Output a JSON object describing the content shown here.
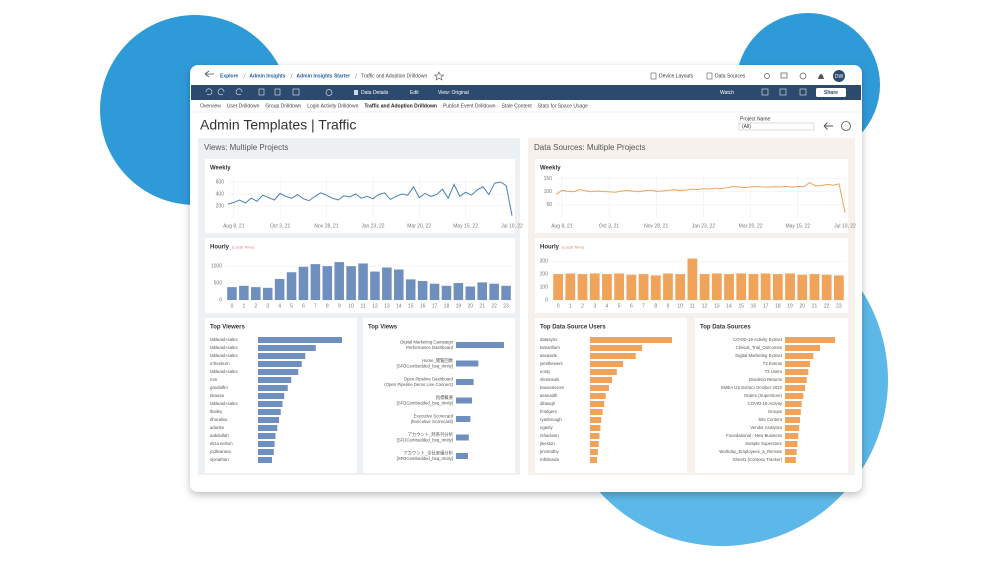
{
  "breadcrumb": [
    "Explore",
    "Admin Insights",
    "Admin Insights Starter",
    "Traffic and Adoption Drilldown"
  ],
  "top_actions": [
    "Device Layouts",
    "Data Sources"
  ],
  "avatar": "DW",
  "toolbar": {
    "data_details": "Data Details",
    "edit": "Edit",
    "view": "View: Original",
    "watch": "Watch",
    "share": "Share"
  },
  "tabs": [
    "Overview",
    "User Drilldown",
    "Group Drilldown",
    "Login Activity Drilldown",
    "Traffic and Adoption Drilldown",
    "Publish Event Drilldown",
    "Stale Content",
    "Stats for Space Usage"
  ],
  "title": "Admin Templates | Traffic",
  "filter": {
    "label": "Project Name",
    "value": "(All)"
  },
  "sections": [
    "Views: Multiple Projects",
    "Data Sources: Multiple Projects"
  ],
  "chart_data": [
    {
      "type": "line",
      "title": "Weekly",
      "color": "#4a7fb5",
      "categories": [
        null,
        "Aug 8, 21",
        null,
        null,
        null,
        null,
        null,
        null,
        null,
        "Oct 3, 21",
        null,
        null,
        null,
        null,
        null,
        null,
        null,
        "Nov 28, 21",
        null,
        null,
        null,
        null,
        null,
        null,
        null,
        "Jan 23, 22",
        null,
        null,
        null,
        null,
        null,
        null,
        null,
        "Mar 20, 22",
        null,
        null,
        null,
        null,
        null,
        null,
        null,
        "May 15, 22",
        null,
        null,
        null,
        null,
        null,
        null,
        null,
        "Jul 10, 22"
      ],
      "values": [
        230,
        260,
        300,
        250,
        330,
        280,
        380,
        340,
        300,
        410,
        360,
        330,
        390,
        320,
        290,
        360,
        420,
        380,
        330,
        300,
        370,
        350,
        400,
        330,
        360,
        320,
        390,
        420,
        310,
        360,
        400,
        380,
        520,
        340,
        410,
        360,
        390,
        480,
        330,
        560,
        360,
        430,
        380,
        470,
        520,
        390,
        580,
        600,
        540,
        40
      ],
      "ylim": [
        0,
        700
      ],
      "yticks": [
        200,
        400,
        600
      ]
    },
    {
      "type": "bar",
      "title": "Hourly",
      "subtitle": "(Local Time)",
      "color": "#6f8fbe",
      "categories": [
        0,
        1,
        2,
        3,
        4,
        5,
        6,
        7,
        8,
        9,
        10,
        11,
        12,
        13,
        14,
        15,
        16,
        17,
        18,
        19,
        20,
        21,
        22,
        23
      ],
      "values": [
        380,
        420,
        380,
        360,
        620,
        820,
        980,
        1060,
        1000,
        1120,
        1000,
        1080,
        840,
        960,
        900,
        610,
        560,
        480,
        420,
        500,
        400,
        520,
        480,
        420
      ],
      "ylim": [
        0,
        1300
      ],
      "yticks": [
        0,
        500,
        1000
      ]
    },
    {
      "type": "line",
      "title": "Weekly",
      "color": "#f0a35a",
      "categories": [
        null,
        "Aug 8, 21",
        null,
        null,
        null,
        null,
        null,
        null,
        null,
        "Oct 3, 21",
        null,
        null,
        null,
        null,
        null,
        null,
        null,
        "Nov 28, 21",
        null,
        null,
        null,
        null,
        null,
        null,
        null,
        "Jan 23, 22",
        null,
        null,
        null,
        null,
        null,
        null,
        null,
        "Mar 20, 22",
        null,
        null,
        null,
        null,
        null,
        null,
        null,
        "May 15, 22",
        null,
        null,
        null,
        null,
        null,
        null,
        null,
        "Jul 10, 22"
      ],
      "values": [
        90,
        105,
        102,
        100,
        108,
        104,
        100,
        103,
        101,
        100,
        98,
        102,
        105,
        103,
        100,
        104,
        106,
        102,
        103,
        105,
        108,
        104,
        106,
        110,
        108,
        112,
        110,
        114,
        112,
        115,
        120,
        118,
        116,
        118,
        120,
        118,
        117,
        119,
        118,
        121,
        117,
        120,
        119,
        135,
        122,
        124,
        128,
        125,
        130,
        20
      ],
      "ylim": [
        0,
        160
      ],
      "yticks": [
        50,
        100,
        150
      ]
    },
    {
      "type": "bar",
      "title": "Hourly",
      "subtitle": "(Local Time)",
      "color": "#f0a35a",
      "categories": [
        0,
        1,
        2,
        3,
        4,
        5,
        6,
        7,
        8,
        9,
        10,
        11,
        12,
        13,
        14,
        15,
        16,
        17,
        18,
        19,
        20,
        21,
        22,
        23
      ],
      "values": [
        200,
        205,
        200,
        205,
        200,
        205,
        195,
        200,
        190,
        205,
        200,
        320,
        200,
        205,
        200,
        205,
        200,
        205,
        200,
        205,
        195,
        200,
        195,
        190
      ],
      "ylim": [
        0,
        340
      ],
      "yticks": [
        0,
        100,
        200,
        300
      ]
    },
    {
      "type": "hbar",
      "title": "Top Viewers",
      "color": "#6f8fbe",
      "categories": [
        "tableaid+sales",
        "tableaid+sales",
        "tableaid+sales",
        "mfreeburn",
        "tableaid+sales",
        "mm",
        "gandalfm",
        "nkausa",
        "tableaid+sales",
        "lbailey",
        "dhoralisu",
        "adunke",
        "aabdullah",
        "eliza.nelson",
        "jcollearana",
        "vjonathan"
      ],
      "values": [
        480,
        330,
        270,
        250,
        230,
        190,
        170,
        150,
        140,
        130,
        120,
        110,
        100,
        95,
        90,
        80
      ]
    },
    {
      "type": "hbar",
      "title": "Top Views",
      "color": "#6f8fbe",
      "categories": [
        [
          "Digital Marketing Campaign",
          "Performance Dashboard"
        ],
        [
          "Home_閲覧回数",
          "[SFDCembedded_bsq_trinity]"
        ],
        [
          "Open Pipeline Dashboard",
          "(Open Pipeline Demo Live Connect)"
        ],
        [
          "指標概要",
          "[SFDCembedded_bsq_trinity]"
        ],
        [
          "Executive Scorecard",
          "(Executive Scorecard)"
        ],
        [
          "アカウント_時系列分析",
          "[SFDCembedded_bsq_trinity]"
        ],
        [
          "アカウント_全社実績分析",
          "[SFDCembedded_bsq_trinity]"
        ]
      ],
      "values": [
        300,
        140,
        110,
        100,
        90,
        80,
        75
      ]
    },
    {
      "type": "hbar",
      "title": "Top Data Source Users",
      "color": "#f0a35a",
      "categories": [
        "datasytcr",
        "tamarillum",
        "aseaside",
        "jsmithewers",
        "eosty",
        "sfeninsuls",
        "bassxxlerom",
        "aeseaidh",
        "dibasqh",
        "fmtdgers",
        "ryanbrough",
        "ngasty",
        "nthadown",
        "jleeston",
        "jmomathy",
        "mlbrlanda"
      ],
      "values": [
        520,
        330,
        290,
        210,
        170,
        140,
        120,
        100,
        90,
        80,
        72,
        66,
        60,
        55,
        50,
        45
      ]
    },
    {
      "type": "hbar",
      "title": "Top Data Sources",
      "color": "#f0a35a",
      "categories": [
        "COVID-19 Activity Extract",
        "Clinical_Trial_Outcomes",
        "Digital Marketing Extract",
        "T3 Events",
        "T3 Users",
        "Dividend Returns",
        "EMEA US Extract October 2022",
        "Orders (Superstore)",
        "COVID-19 Activity",
        "Groups",
        "Site Content",
        "Vendor Analytics",
        "Foundational - New Business",
        "Sample Superstore",
        "Workday_Employees_a_Remote",
        "Sheet1 (Contoso Tracker)"
      ],
      "values": [
        300,
        210,
        170,
        150,
        140,
        130,
        120,
        110,
        100,
        95,
        90,
        85,
        80,
        75,
        70,
        65
      ]
    }
  ]
}
